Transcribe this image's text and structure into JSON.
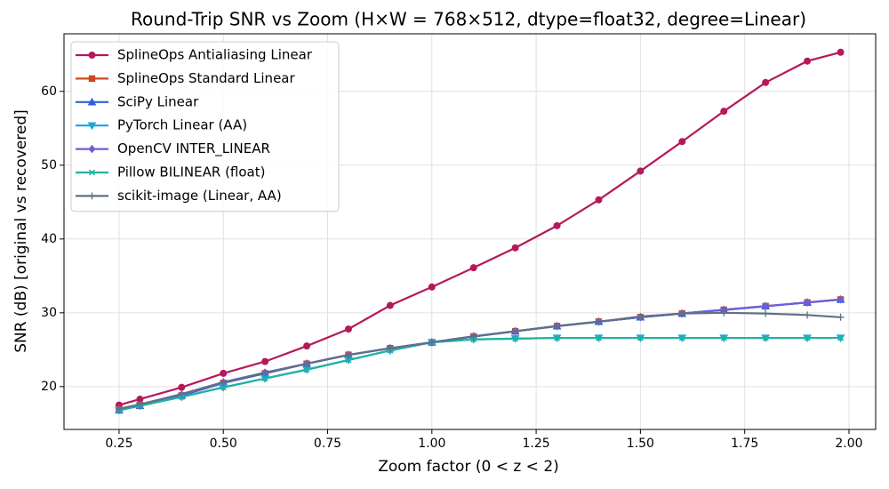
{
  "chart_data": {
    "type": "line",
    "title": "Round-Trip SNR vs Zoom  (H×W = 768×512, dtype=float32, degree=Linear)",
    "x_label": "Zoom factor (0 < z < 2)",
    "y_label": "SNR (dB)  [original vs recovered]",
    "x": [
      0.25,
      0.3,
      0.4,
      0.5,
      0.6,
      0.7,
      0.8,
      0.9,
      1.0,
      1.1,
      1.2,
      1.3,
      1.4,
      1.5,
      1.6,
      1.7,
      1.8,
      1.9,
      1.98
    ],
    "series": [
      {
        "name": "SplineOps Antialiasing Linear",
        "color": "#b5195b",
        "marker": "circle",
        "values": [
          17.5,
          18.3,
          19.9,
          21.8,
          23.4,
          25.5,
          27.8,
          31.0,
          33.5,
          36.1,
          38.8,
          41.8,
          45.3,
          49.2,
          53.2,
          57.3,
          61.2,
          64.1,
          65.3
        ]
      },
      {
        "name": "SplineOps Standard Linear",
        "color": "#cc4a1a",
        "marker": "square",
        "values": [
          16.9,
          17.5,
          18.8,
          20.5,
          21.8,
          23.1,
          24.3,
          25.2,
          26.0,
          26.8,
          27.5,
          28.2,
          28.8,
          29.4,
          29.9,
          30.4,
          30.9,
          31.4,
          31.8
        ]
      },
      {
        "name": "SciPy Linear",
        "color": "#2f5fe0",
        "marker": "triangle-up",
        "values": [
          16.8,
          17.4,
          18.8,
          20.5,
          21.8,
          23.1,
          24.3,
          25.2,
          26.0,
          26.8,
          27.5,
          28.2,
          28.8,
          29.4,
          29.9,
          30.4,
          30.9,
          31.4,
          31.8
        ]
      },
      {
        "name": "PyTorch Linear (AA)",
        "color": "#1ba5e0",
        "marker": "triangle-down",
        "values": [
          16.8,
          17.4,
          18.6,
          19.9,
          21.1,
          22.3,
          23.6,
          24.9,
          26.0,
          26.4,
          26.5,
          26.6,
          26.6,
          26.6,
          26.6,
          26.6,
          26.6,
          26.6,
          26.6
        ]
      },
      {
        "name": "OpenCV INTER_LINEAR",
        "color": "#6a5fe0",
        "marker": "diamond",
        "values": [
          16.9,
          17.5,
          18.9,
          20.6,
          21.9,
          23.1,
          24.3,
          25.2,
          26.0,
          26.8,
          27.5,
          28.2,
          28.8,
          29.4,
          29.9,
          30.4,
          30.9,
          31.4,
          31.8
        ]
      },
      {
        "name": "Pillow BILINEAR (float)",
        "color": "#20b2a0",
        "marker": "x",
        "values": [
          16.8,
          17.4,
          18.6,
          19.9,
          21.1,
          22.3,
          23.6,
          24.9,
          26.0,
          26.4,
          26.5,
          26.6,
          26.6,
          26.6,
          26.6,
          26.6,
          26.6,
          26.6,
          26.6
        ]
      },
      {
        "name": "scikit-image (Linear, AA)",
        "color": "#5f7088",
        "marker": "plus",
        "values": [
          17.0,
          17.6,
          19.0,
          20.6,
          21.9,
          23.1,
          24.3,
          25.2,
          26.0,
          26.8,
          27.5,
          28.2,
          28.8,
          29.5,
          29.9,
          30.0,
          29.9,
          29.7,
          29.4
        ]
      }
    ],
    "xlim": [
      0.118,
      2.064
    ],
    "ylim": [
      14.2,
      67.8
    ],
    "xticks": [
      0.25,
      {
        "value": 0.5,
        "label": "0.50"
      },
      0.75,
      {
        "value": 1.0,
        "label": "1.00"
      },
      1.25,
      {
        "value": 1.5,
        "label": "1.50"
      },
      1.75,
      {
        "value": 2.0,
        "label": "2.00"
      }
    ],
    "yticks": [
      20,
      30,
      40,
      50,
      60
    ],
    "grid": true,
    "legend": "upper-left"
  }
}
